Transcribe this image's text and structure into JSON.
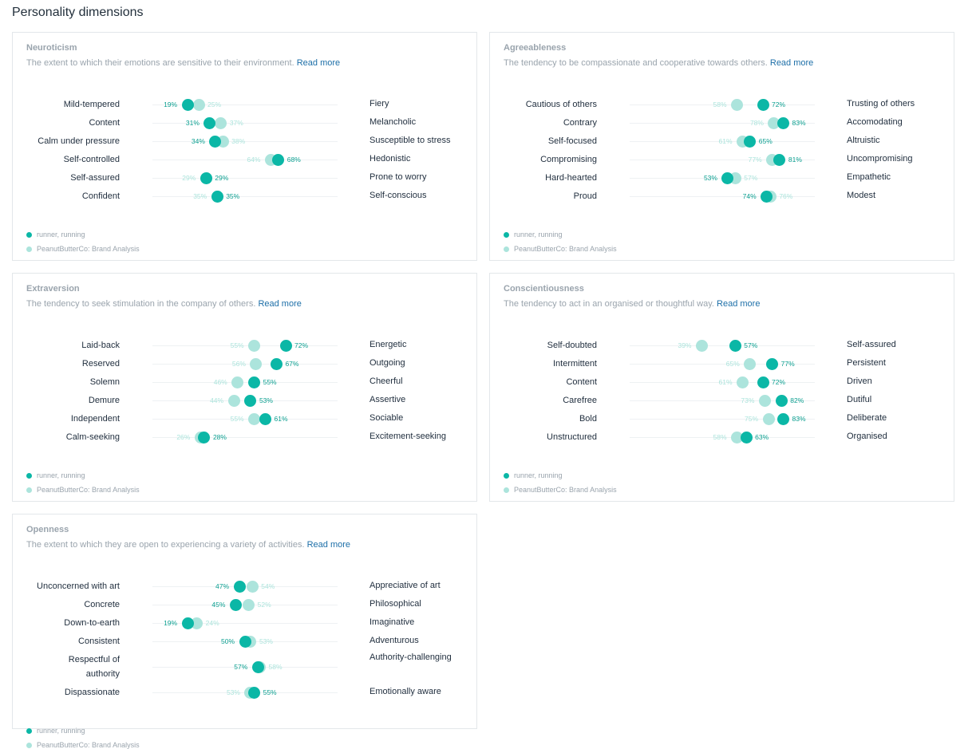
{
  "page_title": "Personality dimensions",
  "colors": {
    "runner": "#0bb7a6",
    "brand": "#ace4dc",
    "link": "#1d6fa8"
  },
  "legend": {
    "runner": "runner, running",
    "brand": "PeanutButterCo: Brand Analysis"
  },
  "read_more": "Read more",
  "cards": [
    {
      "title": "Neuroticism",
      "description": "The extent to which their emotions are sensitive to their environment.",
      "rows": [
        {
          "left": "Mild-tempered",
          "right": "Fiery",
          "runner": 19,
          "brand": 25
        },
        {
          "left": "Content",
          "right": "Melancholic",
          "runner": 31,
          "brand": 37
        },
        {
          "left": "Calm under pressure",
          "right": "Susceptible to stress",
          "runner": 34,
          "brand": 38
        },
        {
          "left": "Self-controlled",
          "right": "Hedonistic",
          "runner": 68,
          "brand": 64
        },
        {
          "left": "Self-assured",
          "right": "Prone to worry",
          "runner": 29,
          "brand": 29
        },
        {
          "left": "Confident",
          "right": "Self-conscious",
          "runner": 35,
          "brand": 35
        }
      ]
    },
    {
      "title": "Agreeableness",
      "description": "The tendency to be compassionate and cooperative towards others.",
      "rows": [
        {
          "left": "Cautious of others",
          "right": "Trusting of others",
          "runner": 72,
          "brand": 58
        },
        {
          "left": "Contrary",
          "right": "Accomodating",
          "runner": 83,
          "brand": 78
        },
        {
          "left": "Self-focused",
          "right": "Altruistic",
          "runner": 65,
          "brand": 61
        },
        {
          "left": "Compromising",
          "right": "Uncompromising",
          "runner": 81,
          "brand": 77
        },
        {
          "left": "Hard-hearted",
          "right": "Empathetic",
          "runner": 53,
          "brand": 57
        },
        {
          "left": "Proud",
          "right": "Modest",
          "runner": 74,
          "brand": 76
        }
      ]
    },
    {
      "title": "Extraversion",
      "description": "The tendency to seek stimulation in the company of others.",
      "rows": [
        {
          "left": "Laid-back",
          "right": "Energetic",
          "runner": 72,
          "brand": 55
        },
        {
          "left": "Reserved",
          "right": "Outgoing",
          "runner": 67,
          "brand": 56
        },
        {
          "left": "Solemn",
          "right": "Cheerful",
          "runner": 55,
          "brand": 46
        },
        {
          "left": "Demure",
          "right": "Assertive",
          "runner": 53,
          "brand": 44
        },
        {
          "left": "Independent",
          "right": "Sociable",
          "runner": 61,
          "brand": 55
        },
        {
          "left": "Calm-seeking",
          "right": "Excitement-seeking",
          "runner": 28,
          "brand": 26
        }
      ]
    },
    {
      "title": "Conscientiousness",
      "description": "The tendency to act in an organised or thoughtful way.",
      "rows": [
        {
          "left": "Self-doubted",
          "right": "Self-assured",
          "runner": 57,
          "brand": 39
        },
        {
          "left": "Intermittent",
          "right": "Persistent",
          "runner": 77,
          "brand": 65
        },
        {
          "left": "Content",
          "right": "Driven",
          "runner": 72,
          "brand": 61
        },
        {
          "left": "Carefree",
          "right": "Dutiful",
          "runner": 82,
          "brand": 73
        },
        {
          "left": "Bold",
          "right": "Deliberate",
          "runner": 83,
          "brand": 75
        },
        {
          "left": "Unstructured",
          "right": "Organised",
          "runner": 63,
          "brand": 58
        }
      ]
    },
    {
      "title": "Openness",
      "description": "The extent to which they are open to experiencing a variety of activities.",
      "rows": [
        {
          "left": "Unconcerned with art",
          "right": "Appreciative of art",
          "runner": 47,
          "brand": 54
        },
        {
          "left": "Concrete",
          "right": "Philosophical",
          "runner": 45,
          "brand": 52
        },
        {
          "left": "Down-to-earth",
          "right": "Imaginative",
          "runner": 19,
          "brand": 24
        },
        {
          "left": "Consistent",
          "right": "Adventurous",
          "runner": 50,
          "brand": 53
        },
        {
          "left": "Respectful of authority",
          "right": "Authority-challenging",
          "runner": 57,
          "brand": 58
        },
        {
          "left": "Dispassionate",
          "right": "Emotionally aware",
          "runner": 55,
          "brand": 53
        }
      ]
    }
  ]
}
